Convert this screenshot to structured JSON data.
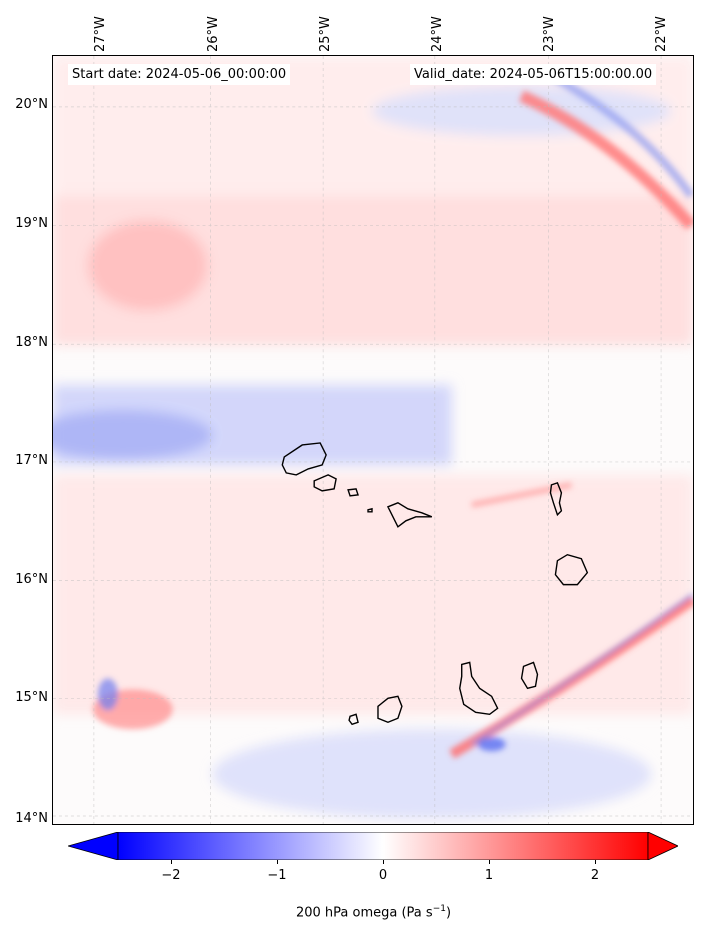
{
  "map": {
    "start_label": "Start date: 2024-05-06_00:00:00",
    "valid_label": "Valid_date: 2024-05-06T15:00:00.00",
    "longitude_labels": [
      "27°W",
      "26°W",
      "25°W",
      "24°W",
      "23°W",
      "22°W"
    ],
    "latitude_labels": [
      "20°N",
      "19°N",
      "18°N",
      "17°N",
      "16°N",
      "15°N",
      "14°N"
    ],
    "extent": {
      "lon_min": -27.35,
      "lon_max": -21.85,
      "lat_min": 13.95,
      "lat_max": 20.45
    },
    "gridlines": true
  },
  "colorbar": {
    "variable": "200 hPa omega",
    "units": "Pa s",
    "units_exponent": "−1",
    "ticks": [
      "−2",
      "−1",
      "0",
      "1",
      "2"
    ],
    "tick_values": [
      -2,
      -1,
      0,
      1,
      2
    ],
    "range": [
      -2.5,
      2.5
    ],
    "colormap": "bwr",
    "extend": "both",
    "colors": {
      "negative": "#0000ff",
      "zero": "#ffffff",
      "positive": "#ff0000"
    }
  },
  "islands": [
    "Santo Antão",
    "São Vicente",
    "Santa Luzia",
    "São Nicolau",
    "Sal",
    "Boa Vista",
    "Maio",
    "Santiago",
    "Fogo",
    "Brava"
  ]
}
